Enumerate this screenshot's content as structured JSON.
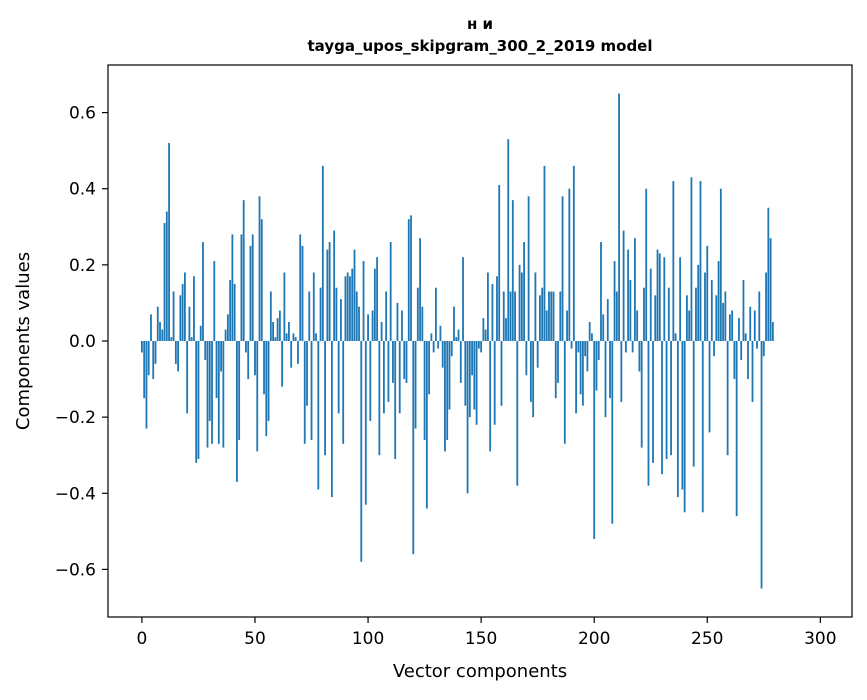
{
  "chart_data": {
    "type": "bar",
    "title_line1": "н и",
    "title_line2": "tayga_upos_skipgram_300_2_2019 model",
    "xlabel": "Vector components",
    "ylabel": "Components values",
    "xlim": [
      -15,
      314
    ],
    "ylim": [
      -0.725,
      0.725
    ],
    "x_ticks": [
      0,
      50,
      100,
      150,
      200,
      250,
      300
    ],
    "y_ticks": [
      -0.6,
      -0.4,
      -0.2,
      0.0,
      0.2,
      0.4,
      0.6
    ],
    "x_tick_labels": [
      "0",
      "50",
      "100",
      "150",
      "200",
      "250",
      "300"
    ],
    "y_tick_labels": [
      "−0.6",
      "−0.4",
      "−0.2",
      "0.0",
      "0.2",
      "0.4",
      "0.6"
    ],
    "bar_color": "#1f77b4",
    "values": [
      -0.03,
      -0.15,
      -0.23,
      -0.09,
      0.07,
      -0.1,
      -0.06,
      0.09,
      0.05,
      0.03,
      0.31,
      0.34,
      0.52,
      0.01,
      0.13,
      -0.06,
      -0.08,
      0.12,
      0.15,
      0.18,
      -0.19,
      0.09,
      0.01,
      0.17,
      -0.32,
      -0.31,
      0.04,
      0.26,
      -0.05,
      -0.28,
      -0.21,
      -0.27,
      0.21,
      -0.15,
      -0.27,
      -0.08,
      -0.28,
      0.03,
      0.07,
      0.16,
      0.28,
      0.15,
      -0.37,
      -0.26,
      0.28,
      0.37,
      -0.03,
      -0.1,
      0.25,
      0.28,
      -0.09,
      -0.29,
      0.38,
      0.32,
      -0.14,
      -0.25,
      -0.21,
      0.13,
      0.05,
      0.01,
      0.06,
      0.08,
      -0.12,
      0.18,
      0.02,
      0.05,
      -0.07,
      0.02,
      0.01,
      -0.06,
      0.28,
      0.25,
      -0.27,
      -0.17,
      0.13,
      -0.26,
      0.18,
      0.02,
      -0.39,
      0.14,
      0.46,
      -0.3,
      0.24,
      0.26,
      -0.41,
      0.29,
      0.14,
      -0.19,
      0.11,
      -0.27,
      0.17,
      0.18,
      0.17,
      0.19,
      0.24,
      0.13,
      0.09,
      -0.58,
      0.21,
      -0.43,
      0.07,
      -0.21,
      0.08,
      0.19,
      0.22,
      -0.3,
      0.05,
      -0.19,
      0.13,
      -0.16,
      0.26,
      -0.11,
      -0.31,
      0.1,
      -0.19,
      0.08,
      -0.1,
      -0.11,
      0.32,
      0.33,
      -0.56,
      -0.23,
      0.14,
      0.27,
      0.09,
      -0.26,
      -0.44,
      -0.14,
      0.02,
      -0.03,
      0.14,
      -0.02,
      0.04,
      -0.07,
      -0.29,
      -0.26,
      -0.18,
      -0.04,
      0.09,
      0.01,
      0.03,
      -0.11,
      0.22,
      -0.17,
      -0.4,
      -0.2,
      -0.09,
      -0.18,
      -0.22,
      -0.02,
      -0.03,
      0.06,
      0.03,
      0.18,
      -0.29,
      0.15,
      -0.22,
      0.17,
      0.41,
      -0.17,
      0.13,
      0.06,
      0.53,
      0.13,
      0.37,
      0.13,
      -0.38,
      0.2,
      0.18,
      0.26,
      -0.09,
      0.38,
      -0.16,
      -0.2,
      0.18,
      -0.07,
      0.12,
      0.14,
      0.46,
      0.08,
      0.13,
      0.13,
      0.13,
      -0.15,
      -0.11,
      0.13,
      0.38,
      -0.27,
      0.08,
      0.4,
      -0.02,
      0.46,
      -0.19,
      -0.03,
      -0.14,
      -0.17,
      -0.04,
      -0.08,
      0.05,
      0.02,
      -0.52,
      -0.13,
      -0.05,
      0.26,
      0.07,
      -0.2,
      0.11,
      -0.15,
      -0.48,
      0.21,
      0.13,
      0.65,
      -0.16,
      0.29,
      -0.03,
      0.24,
      0.16,
      -0.03,
      0.27,
      0.08,
      -0.08,
      -0.28,
      0.14,
      0.4,
      -0.38,
      0.19,
      -0.32,
      0.12,
      0.24,
      0.23,
      -0.35,
      0.22,
      -0.31,
      0.14,
      -0.3,
      0.42,
      0.02,
      -0.41,
      0.22,
      -0.39,
      -0.45,
      0.12,
      0.08,
      0.43,
      -0.33,
      0.14,
      0.2,
      0.42,
      -0.45,
      0.18,
      0.25,
      -0.24,
      0.16,
      -0.04,
      0.12,
      0.21,
      0.4,
      0.1,
      0.13,
      -0.3,
      0.07,
      0.08,
      -0.1,
      -0.46,
      0.06,
      -0.05,
      0.16,
      0.02,
      -0.1,
      0.09,
      -0.16,
      0.08,
      -0.02,
      0.13,
      -0.65,
      -0.04,
      0.18,
      0.35,
      0.27,
      0.05
    ]
  }
}
